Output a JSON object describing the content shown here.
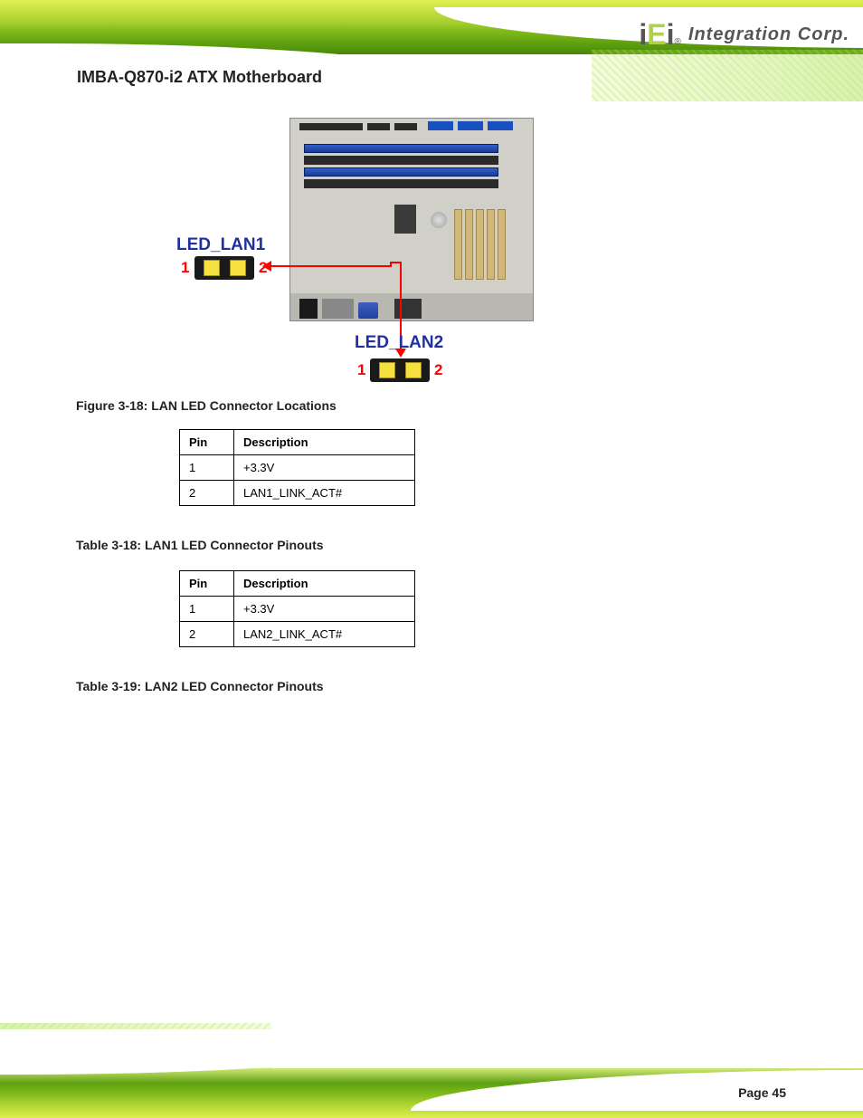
{
  "header": {
    "logo_part1": "i",
    "logo_part2": "E",
    "logo_part3": "i",
    "logo_reg": "®",
    "logo_text": "Integration Corp.",
    "product_name": "IMBA-Q870-i2 ATX Motherboard"
  },
  "figure": {
    "led_lan1_label": "LED_LAN1",
    "led_lan2_label": "LED_LAN2",
    "pin1": "1",
    "pin2": "2",
    "caption": "Figure 3-18: LAN LED Connector Locations"
  },
  "table1": {
    "header_pin": "Pin",
    "header_desc": "Description",
    "rows": [
      {
        "pin": "1",
        "desc": "+3.3V"
      },
      {
        "pin": "2",
        "desc": "LAN1_LINK_ACT#"
      }
    ],
    "caption": "Table 3-18: LAN1 LED Connector Pinouts"
  },
  "table2": {
    "header_pin": "Pin",
    "header_desc": "Description",
    "rows": [
      {
        "pin": "1",
        "desc": "+3.3V"
      },
      {
        "pin": "2",
        "desc": "LAN2_LINK_ACT#"
      }
    ],
    "caption": "Table 3-19: LAN2 LED Connector Pinouts"
  },
  "footer": {
    "page": "Page 45"
  },
  "styling": {
    "header_bg_colors": [
      "#dff050",
      "#a8d030",
      "#7bb818",
      "#5fa010",
      "#4a8808"
    ],
    "led_label_color": "#2030a0",
    "led_conn_bg": "#1a1a1a",
    "led_pin_fill": "#f5e040",
    "red_line_color": "#ff0000",
    "mb_bg": "#d0d0c8",
    "mb_ram_blue": "#3060d0",
    "mb_pcie_color": "#d0b878",
    "text_color": "#222222",
    "table_border": "#000000",
    "font_size_label": 19,
    "font_size_caption": 14,
    "font_size_table": 13
  }
}
